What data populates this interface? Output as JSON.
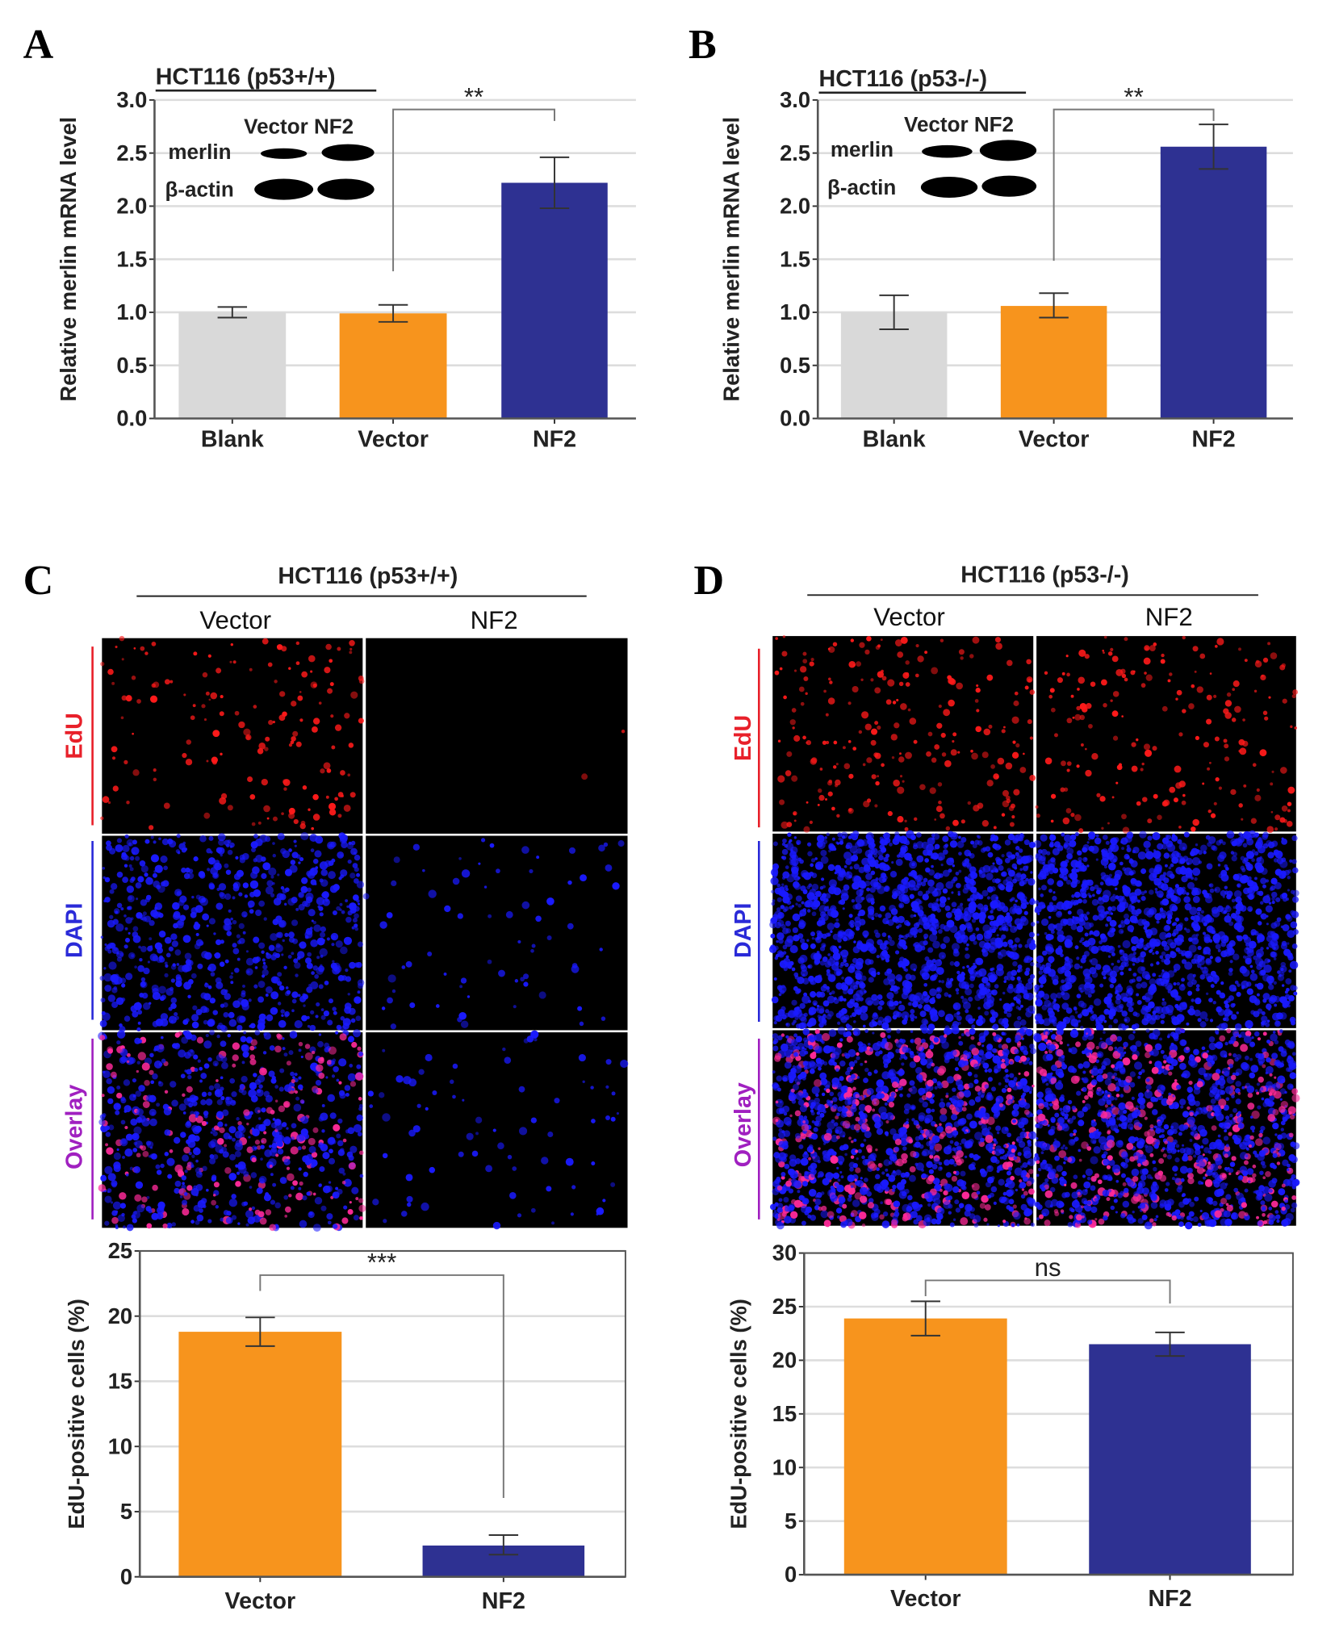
{
  "panels": {
    "A": {
      "letter": "A",
      "title": "HCT116 (p53+/+)"
    },
    "B": {
      "letter": "B",
      "title": "HCT116 (p53-/-)"
    },
    "C": {
      "letter": "C",
      "title": "HCT116 (p53+/+)",
      "columns": [
        "Vector",
        "NF2"
      ],
      "rows": [
        "EdU",
        "DAPI",
        "Overlay"
      ]
    },
    "D": {
      "letter": "D",
      "title": "HCT116 (p53-/-)",
      "columns": [
        "Vector",
        "NF2"
      ],
      "rows": [
        "EdU",
        "DAPI",
        "Overlay"
      ]
    }
  },
  "western_blot": {
    "lanes": "Vector NF2",
    "bands": [
      "merlin",
      "β-actin"
    ]
  },
  "row_colors": {
    "EdU": "#e8202a",
    "DAPI": "#2a2ad8",
    "Overlay": "#a020c0"
  },
  "colors": {
    "Blank": "#d9d9d9",
    "Vector": "#f7941d",
    "NF2": "#2e3192"
  },
  "chart_data": [
    {
      "type": "bar",
      "panel": "A",
      "categories": [
        "Blank",
        "Vector",
        "NF2"
      ],
      "values": [
        1.0,
        0.99,
        2.22
      ],
      "error_low": [
        0.95,
        0.91,
        1.98
      ],
      "error_high": [
        1.05,
        1.07,
        2.46
      ],
      "ylabel": "Relative merlin  mRNA level",
      "ylim": [
        0,
        3.0
      ],
      "yticks": [
        "0.0",
        "0.5",
        "1.0",
        "1.5",
        "2.0",
        "2.5",
        "3.0"
      ],
      "grid": true,
      "significance": {
        "between": [
          "Vector",
          "NF2"
        ],
        "label": "**"
      }
    },
    {
      "type": "bar",
      "panel": "B",
      "categories": [
        "Blank",
        "Vector",
        "NF2"
      ],
      "values": [
        1.0,
        1.06,
        2.56
      ],
      "error_low": [
        0.84,
        0.95,
        2.35
      ],
      "error_high": [
        1.16,
        1.18,
        2.77
      ],
      "ylabel": "Relative merlin  mRNA level",
      "ylim": [
        0,
        3.0
      ],
      "yticks": [
        "0.0",
        "0.5",
        "1.0",
        "1.5",
        "2.0",
        "2.5",
        "3.0"
      ],
      "grid": true,
      "significance": {
        "between": [
          "Vector",
          "NF2"
        ],
        "label": "**"
      }
    },
    {
      "type": "bar",
      "panel": "C",
      "categories": [
        "Vector",
        "NF2"
      ],
      "values": [
        18.8,
        2.4
      ],
      "error_low": [
        17.7,
        1.7
      ],
      "error_high": [
        19.9,
        3.2
      ],
      "ylabel": "EdU-positive cells (%)",
      "ylim": [
        0,
        25
      ],
      "yticks": [
        "0",
        "5",
        "10",
        "15",
        "20",
        "25"
      ],
      "grid": true,
      "significance": {
        "between": [
          "Vector",
          "NF2"
        ],
        "label": "***"
      }
    },
    {
      "type": "bar",
      "panel": "D",
      "categories": [
        "Vector",
        "NF2"
      ],
      "values": [
        23.9,
        21.5
      ],
      "error_low": [
        22.3,
        20.4
      ],
      "error_high": [
        25.5,
        22.6
      ],
      "ylabel": "EdU-positive cells (%)",
      "ylim": [
        0,
        30
      ],
      "yticks": [
        "0",
        "5",
        "10",
        "15",
        "20",
        "25",
        "30"
      ],
      "grid": true,
      "significance": {
        "between": [
          "Vector",
          "NF2"
        ],
        "label": "ns"
      }
    }
  ]
}
